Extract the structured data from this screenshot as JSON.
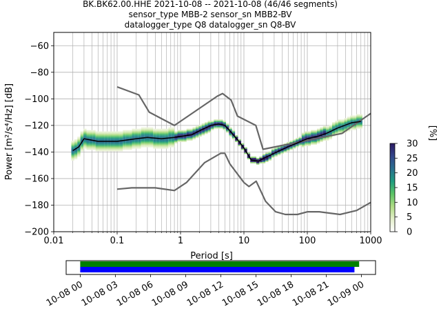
{
  "chart_data": {
    "type": "heatmap",
    "title_lines": [
      "BK.BK62.00.HHE   2021-10-08 -- 2021-10-08  (46/46 segments)",
      "sensor_type MBB-2 sensor_sn MBB2-BV",
      "datalogger_type Q8 datalogger_sn Q8-BV"
    ],
    "xlabel": "Period [s]",
    "ylabel": "Power [m²/s⁴/Hz] [dB]",
    "x_scale": "log",
    "xlim": [
      0.01,
      1000
    ],
    "ylim": [
      -200,
      -50
    ],
    "x_ticks": [
      0.01,
      0.1,
      1,
      10,
      100,
      1000
    ],
    "x_tick_labels": [
      "0.01",
      "0.1",
      "1",
      "10",
      "100",
      "1000"
    ],
    "y_ticks": [
      -200,
      -180,
      -160,
      -140,
      -120,
      -100,
      -80,
      -60
    ],
    "y_tick_labels": [
      "−200",
      "−180",
      "−160",
      "−140",
      "−120",
      "−100",
      "−80",
      "−60"
    ],
    "grid": true,
    "colorbar": {
      "label": "[%]",
      "range": [
        0,
        30
      ],
      "ticks": [
        0,
        5,
        10,
        15,
        20,
        25,
        30
      ],
      "tick_labels": [
        "0",
        "5",
        "10",
        "15",
        "20",
        "25",
        "30"
      ]
    },
    "series": [
      {
        "role": "high noise model",
        "points": [
          [
            0.1,
            -91
          ],
          [
            0.22,
            -97
          ],
          [
            0.32,
            -110
          ],
          [
            0.8,
            -120
          ],
          [
            3.8,
            -98
          ],
          [
            4.6,
            -96
          ],
          [
            6.3,
            -101
          ],
          [
            7.9,
            -113
          ],
          [
            15.4,
            -120
          ],
          [
            20,
            -138
          ],
          [
            354,
            -126
          ],
          [
            1000,
            -111
          ]
        ]
      },
      {
        "role": "low noise model",
        "points": [
          [
            0.1,
            -168
          ],
          [
            0.17,
            -167
          ],
          [
            0.4,
            -167
          ],
          [
            0.8,
            -169
          ],
          [
            1.24,
            -163
          ],
          [
            2.4,
            -148
          ],
          [
            4.3,
            -141
          ],
          [
            5,
            -141
          ],
          [
            6,
            -149
          ],
          [
            10,
            -163
          ],
          [
            12,
            -166
          ],
          [
            15.6,
            -162
          ],
          [
            21.9,
            -177
          ],
          [
            31.6,
            -185
          ],
          [
            45,
            -187
          ],
          [
            70,
            -187
          ],
          [
            101,
            -185
          ],
          [
            154,
            -185
          ],
          [
            328,
            -187
          ],
          [
            600,
            -184
          ],
          [
            1000,
            -178
          ]
        ]
      },
      {
        "role": "median",
        "points": [
          [
            0.02,
            -139
          ],
          [
            0.025,
            -136
          ],
          [
            0.03,
            -130
          ],
          [
            0.05,
            -132
          ],
          [
            0.1,
            -132
          ],
          [
            0.2,
            -130
          ],
          [
            0.3,
            -129
          ],
          [
            0.5,
            -130
          ],
          [
            0.8,
            -129
          ],
          [
            1.5,
            -127
          ],
          [
            2,
            -124
          ],
          [
            3,
            -120
          ],
          [
            4,
            -119
          ],
          [
            5,
            -120
          ],
          [
            6,
            -124
          ],
          [
            8,
            -131
          ],
          [
            10,
            -137
          ],
          [
            13,
            -146
          ],
          [
            17,
            -147
          ],
          [
            20,
            -145
          ],
          [
            30,
            -141
          ],
          [
            50,
            -136
          ],
          [
            80,
            -132
          ],
          [
            100,
            -130
          ],
          [
            150,
            -128
          ],
          [
            200,
            -126
          ],
          [
            300,
            -122
          ],
          [
            500,
            -118
          ],
          [
            700,
            -117
          ]
        ]
      }
    ],
    "timeline": {
      "tick_labels": [
        "10-08 00",
        "10-08 03",
        "10-08 06",
        "10-08 09",
        "10-08 12",
        "10-08 15",
        "10-08 18",
        "10-08 21",
        "10-09 00"
      ],
      "range_hours": [
        -1.2,
        25.2
      ],
      "bars": [
        {
          "color": "#008000",
          "start_hour": 0,
          "end_hour": 23.8
        },
        {
          "color": "#0000ff",
          "start_hour": 0,
          "end_hour": 23.4
        }
      ]
    },
    "colors": {
      "noise_model": "#666666",
      "median": "#000000",
      "grid": "#b0b0b0",
      "colormap": [
        "#ffffff",
        "#e4efcb",
        "#b0dd86",
        "#5cc466",
        "#1f9c80",
        "#2a6f8f",
        "#33468b",
        "#2b1a63"
      ]
    }
  }
}
